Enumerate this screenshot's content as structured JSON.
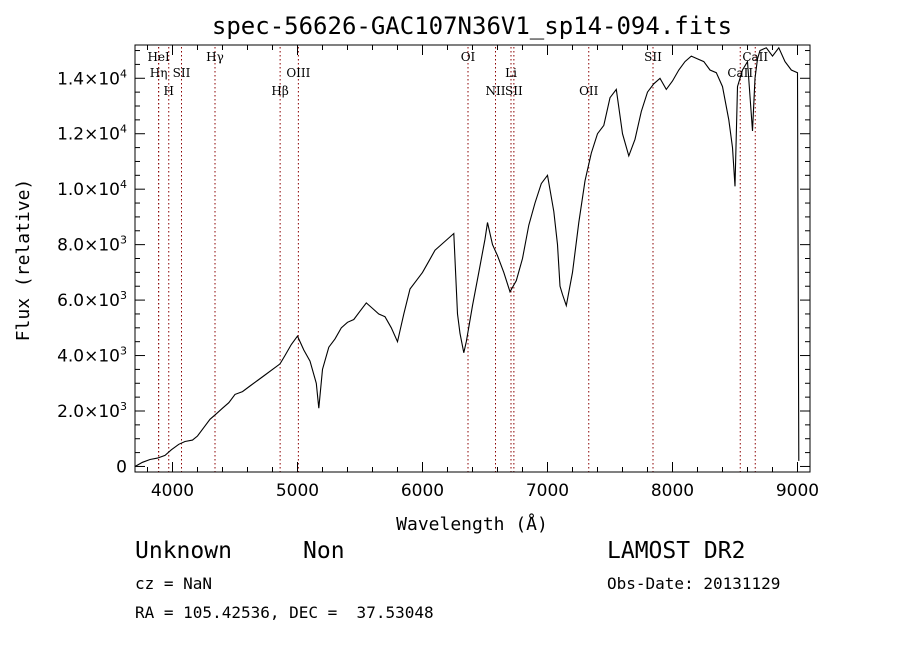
{
  "chart_data": {
    "type": "line",
    "title": "spec-56626-GAC107N36V1_sp14-094.fits",
    "xlabel": "Wavelength (Å)",
    "ylabel": "Flux (relative)",
    "xlim": [
      3700,
      9100
    ],
    "ylim": [
      -200,
      15200
    ],
    "x_ticks": [
      {
        "value": 4000,
        "label": "4000"
      },
      {
        "value": 5000,
        "label": "5000"
      },
      {
        "value": 6000,
        "label": "6000"
      },
      {
        "value": 7000,
        "label": "7000"
      },
      {
        "value": 8000,
        "label": "8000"
      },
      {
        "value": 9000,
        "label": "9000"
      }
    ],
    "y_ticks": [
      {
        "value": 0,
        "mant": "0",
        "exp": ""
      },
      {
        "value": 2000,
        "mant": "2.0×10",
        "exp": "3"
      },
      {
        "value": 4000,
        "mant": "4.0×10",
        "exp": "3"
      },
      {
        "value": 6000,
        "mant": "6.0×10",
        "exp": "3"
      },
      {
        "value": 8000,
        "mant": "8.0×10",
        "exp": "3"
      },
      {
        "value": 10000,
        "mant": "1.0×10",
        "exp": "4"
      },
      {
        "value": 12000,
        "mant": "1.2×10",
        "exp": "4"
      },
      {
        "value": 14000,
        "mant": "1.4×10",
        "exp": "4"
      }
    ],
    "spectral_lines": [
      {
        "label": "Hη",
        "wavelength": 3889,
        "row": 1,
        "color": "#8b0000"
      },
      {
        "label": "HeI",
        "wavelength": 3889,
        "row": 0,
        "color": "#8b0000"
      },
      {
        "label": "H",
        "wavelength": 3970,
        "row": 2,
        "color": "#8b0000"
      },
      {
        "label": "SII",
        "wavelength": 4072,
        "row": 1,
        "color": "#8b0000"
      },
      {
        "label": "Hγ",
        "wavelength": 4340,
        "row": 0,
        "color": "#8b0000"
      },
      {
        "label": "Hβ",
        "wavelength": 4861,
        "row": 2,
        "color": "#8b0000"
      },
      {
        "label": "OIII",
        "wavelength": 5007,
        "row": 1,
        "color": "#8b0000"
      },
      {
        "label": "OI",
        "wavelength": 6364,
        "row": 0,
        "color": "#8b0000"
      },
      {
        "label": "Li",
        "wavelength": 6708,
        "row": 1,
        "color": "#8b0000"
      },
      {
        "label": "NII",
        "wavelength": 6584,
        "row": 2,
        "color": "#8b0000"
      },
      {
        "label": "SII",
        "wavelength": 6731,
        "row": 2,
        "color": "#8b0000"
      },
      {
        "label": "OII",
        "wavelength": 7330,
        "row": 2,
        "color": "#8b0000"
      },
      {
        "label": "SII",
        "wavelength": 7844,
        "row": 0,
        "color": "#8b0000"
      },
      {
        "label": "CaII",
        "wavelength": 8542,
        "row": 1,
        "color": "#8b0000"
      },
      {
        "label": "CaII",
        "wavelength": 8662,
        "row": 0,
        "color": "#8b0000"
      }
    ],
    "series": [
      {
        "x": [
          3700,
          3760,
          3820,
          3880,
          3940,
          3990,
          4050,
          4100,
          4160,
          4200,
          4250,
          4300,
          4350,
          4400,
          4450,
          4500,
          4560,
          4620,
          4680,
          4740,
          4800,
          4860,
          4900,
          4950,
          5000,
          5050,
          5100,
          5150,
          5170,
          5200,
          5250,
          5300,
          5350,
          5400,
          5450,
          5500,
          5550,
          5600,
          5650,
          5700,
          5750,
          5800,
          5850,
          5900,
          5950,
          6000,
          6050,
          6100,
          6150,
          6200,
          6250,
          6280,
          6300,
          6330,
          6350,
          6400,
          6450,
          6500,
          6520,
          6560,
          6600,
          6650,
          6700,
          6750,
          6800,
          6850,
          6900,
          6950,
          7000,
          7050,
          7080,
          7100,
          7120,
          7150,
          7200,
          7250,
          7300,
          7350,
          7400,
          7450,
          7500,
          7550,
          7600,
          7650,
          7700,
          7750,
          7800,
          7850,
          7900,
          7950,
          8000,
          8050,
          8100,
          8150,
          8200,
          8250,
          8300,
          8350,
          8400,
          8450,
          8480,
          8500,
          8520,
          8540,
          8560,
          8600,
          8640,
          8660,
          8680,
          8700,
          8750,
          8800,
          8850,
          8900,
          8950,
          9000,
          9010
        ],
        "y": [
          0,
          150,
          250,
          300,
          400,
          600,
          800,
          900,
          950,
          1100,
          1400,
          1700,
          1900,
          2100,
          2300,
          2600,
          2700,
          2900,
          3100,
          3300,
          3500,
          3700,
          4000,
          4400,
          4700,
          4200,
          3800,
          3000,
          2100,
          3500,
          4300,
          4600,
          5000,
          5200,
          5300,
          5600,
          5900,
          5700,
          5500,
          5400,
          5000,
          4500,
          5500,
          6400,
          6700,
          7000,
          7400,
          7800,
          8000,
          8200,
          8400,
          5500,
          4800,
          4100,
          4500,
          5800,
          7000,
          8200,
          8800,
          8000,
          7600,
          7000,
          6300,
          6700,
          7500,
          8700,
          9500,
          10200,
          10500,
          9200,
          8000,
          6500,
          6200,
          5800,
          7000,
          8800,
          10300,
          11300,
          12000,
          12300,
          13300,
          13600,
          12000,
          11200,
          11800,
          12800,
          13500,
          13800,
          14000,
          13600,
          13900,
          14300,
          14600,
          14800,
          14700,
          14600,
          14300,
          14200,
          13700,
          12500,
          11500,
          10100,
          13700,
          14000,
          14300,
          14600,
          12100,
          14000,
          14700,
          15000,
          15100,
          14800,
          15100,
          14600,
          14300,
          14200,
          200
        ]
      }
    ]
  },
  "footer": {
    "object_class": "Unknown",
    "object_subclass": "Non",
    "cz": "cz = NaN",
    "coords": "RA = 105.42536, DEC =  37.53048",
    "survey": "LAMOST DR2",
    "obs_date": "Obs-Date: 20131129"
  }
}
